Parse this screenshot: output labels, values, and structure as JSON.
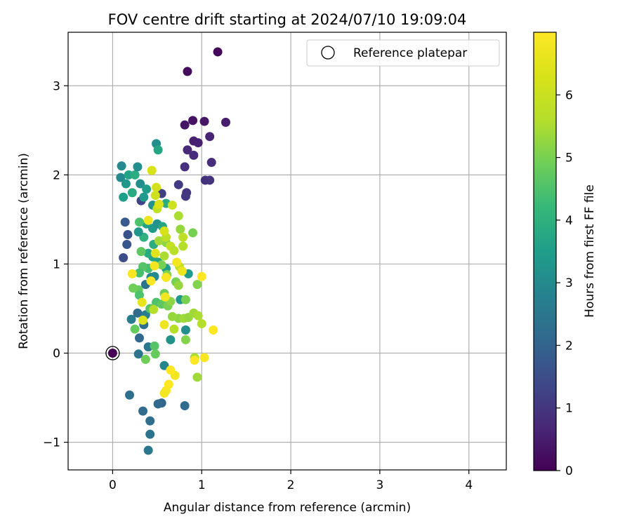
{
  "chart_data": {
    "type": "scatter",
    "title": "FOV centre drift starting at 2024/07/10 19:09:04",
    "xlabel": "Angular distance from reference (arcmin)",
    "ylabel": "Rotation from reference (arcmin)",
    "xlim": [
      -0.5,
      4.42
    ],
    "ylim": [
      -1.31,
      3.6
    ],
    "xticks": [
      0,
      1,
      2,
      3,
      4
    ],
    "yticks": [
      -1,
      0,
      1,
      2,
      3
    ],
    "grid": true,
    "legend": {
      "position": "top-right",
      "entries": [
        "Reference platepar"
      ]
    },
    "reference_point": {
      "x": 0,
      "y": 0,
      "label": "Reference platepar"
    },
    "colorbar": {
      "label": "Hours from first FF file",
      "colormap": "viridis",
      "range": [
        0,
        7
      ],
      "ticks": [
        0,
        1,
        2,
        3,
        4,
        5,
        6
      ]
    },
    "x_units": "arcmin",
    "y_units": "arcmin",
    "points": [
      {
        "x": 0.0,
        "y": 0.0,
        "c": 0.0
      },
      {
        "x": 1.18,
        "y": 3.38,
        "c": 0.1
      },
      {
        "x": 0.84,
        "y": 3.16,
        "c": 0.2
      },
      {
        "x": 0.9,
        "y": 2.61,
        "c": 0.3
      },
      {
        "x": 0.81,
        "y": 2.56,
        "c": 0.35
      },
      {
        "x": 1.03,
        "y": 2.6,
        "c": 0.4
      },
      {
        "x": 1.27,
        "y": 2.59,
        "c": 0.5
      },
      {
        "x": 0.91,
        "y": 2.38,
        "c": 0.55
      },
      {
        "x": 0.96,
        "y": 2.36,
        "c": 0.6
      },
      {
        "x": 1.09,
        "y": 2.43,
        "c": 0.65
      },
      {
        "x": 0.84,
        "y": 2.28,
        "c": 0.7
      },
      {
        "x": 0.91,
        "y": 2.22,
        "c": 0.75
      },
      {
        "x": 1.11,
        "y": 2.14,
        "c": 0.8
      },
      {
        "x": 0.81,
        "y": 2.09,
        "c": 0.85
      },
      {
        "x": 1.04,
        "y": 1.94,
        "c": 0.9
      },
      {
        "x": 1.09,
        "y": 1.94,
        "c": 0.95
      },
      {
        "x": 0.83,
        "y": 1.8,
        "c": 1.0
      },
      {
        "x": 0.82,
        "y": 1.76,
        "c": 1.05
      },
      {
        "x": 0.74,
        "y": 1.89,
        "c": 1.1
      },
      {
        "x": 0.55,
        "y": 1.79,
        "c": 1.2
      },
      {
        "x": 0.32,
        "y": 1.71,
        "c": 1.3
      },
      {
        "x": 0.12,
        "y": 1.07,
        "c": 1.5
      },
      {
        "x": 0.17,
        "y": 1.33,
        "c": 1.6
      },
      {
        "x": 0.16,
        "y": 1.22,
        "c": 1.7
      },
      {
        "x": 0.14,
        "y": 1.47,
        "c": 1.8
      },
      {
        "x": 0.55,
        "y": -0.56,
        "c": 2.0
      },
      {
        "x": 0.51,
        "y": -0.57,
        "c": 2.1
      },
      {
        "x": 0.34,
        "y": -0.65,
        "c": 2.2
      },
      {
        "x": 0.42,
        "y": -0.76,
        "c": 2.3
      },
      {
        "x": 0.42,
        "y": -0.91,
        "c": 2.4
      },
      {
        "x": 0.4,
        "y": -1.09,
        "c": 2.5
      },
      {
        "x": 0.81,
        "y": -0.59,
        "c": 2.2
      },
      {
        "x": 0.19,
        "y": -0.47,
        "c": 2.3
      },
      {
        "x": 0.29,
        "y": -0.01,
        "c": 2.4
      },
      {
        "x": 0.4,
        "y": 0.07,
        "c": 2.5
      },
      {
        "x": 0.3,
        "y": 0.17,
        "c": 2.1
      },
      {
        "x": 0.35,
        "y": 0.32,
        "c": 2.3
      },
      {
        "x": 0.28,
        "y": 0.45,
        "c": 2.2
      },
      {
        "x": 0.21,
        "y": 0.38,
        "c": 2.6
      },
      {
        "x": 0.37,
        "y": 0.43,
        "c": 2.7
      },
      {
        "x": 0.37,
        "y": 0.77,
        "c": 2.4
      },
      {
        "x": 0.43,
        "y": 0.85,
        "c": 2.9
      },
      {
        "x": 0.47,
        "y": 0.86,
        "c": 3.0
      },
      {
        "x": 0.58,
        "y": -0.14,
        "c": 2.9
      },
      {
        "x": 0.82,
        "y": 0.26,
        "c": 3.1
      },
      {
        "x": 0.65,
        "y": 0.15,
        "c": 3.2
      },
      {
        "x": 0.76,
        "y": 0.6,
        "c": 3.3
      },
      {
        "x": 0.85,
        "y": 0.89,
        "c": 3.4
      },
      {
        "x": 0.6,
        "y": 0.95,
        "c": 3.5
      },
      {
        "x": 0.51,
        "y": 1.02,
        "c": 3.6
      },
      {
        "x": 0.45,
        "y": 1.08,
        "c": 3.7
      },
      {
        "x": 0.4,
        "y": 1.12,
        "c": 3.8
      },
      {
        "x": 0.46,
        "y": 1.22,
        "c": 3.9
      },
      {
        "x": 0.35,
        "y": 1.3,
        "c": 4.0
      },
      {
        "x": 0.29,
        "y": 1.36,
        "c": 3.3
      },
      {
        "x": 0.38,
        "y": 1.45,
        "c": 3.6
      },
      {
        "x": 0.45,
        "y": 1.4,
        "c": 3.4
      },
      {
        "x": 0.5,
        "y": 1.45,
        "c": 3.2
      },
      {
        "x": 0.56,
        "y": 1.42,
        "c": 3.7
      },
      {
        "x": 0.6,
        "y": 1.68,
        "c": 3.9
      },
      {
        "x": 0.35,
        "y": 1.75,
        "c": 3.4
      },
      {
        "x": 0.31,
        "y": 1.9,
        "c": 3.1
      },
      {
        "x": 0.22,
        "y": 1.8,
        "c": 3.8
      },
      {
        "x": 0.12,
        "y": 1.75,
        "c": 3.5
      },
      {
        "x": 0.09,
        "y": 1.97,
        "c": 3.0
      },
      {
        "x": 0.1,
        "y": 2.1,
        "c": 3.0
      },
      {
        "x": 0.15,
        "y": 1.9,
        "c": 3.3
      },
      {
        "x": 0.18,
        "y": 2.0,
        "c": 3.6
      },
      {
        "x": 0.25,
        "y": 2.0,
        "c": 3.9
      },
      {
        "x": 0.28,
        "y": 2.09,
        "c": 3.1
      },
      {
        "x": 0.38,
        "y": 1.84,
        "c": 3.5
      },
      {
        "x": 0.45,
        "y": 1.66,
        "c": 3.2
      },
      {
        "x": 0.49,
        "y": 2.35,
        "c": 3.1
      },
      {
        "x": 0.51,
        "y": 2.28,
        "c": 3.7
      },
      {
        "x": 0.3,
        "y": 1.47,
        "c": 4.5
      },
      {
        "x": 0.32,
        "y": 1.14,
        "c": 4.7
      },
      {
        "x": 0.4,
        "y": 0.95,
        "c": 4.4
      },
      {
        "x": 0.34,
        "y": 0.97,
        "c": 4.6
      },
      {
        "x": 0.3,
        "y": 0.9,
        "c": 4.4
      },
      {
        "x": 0.29,
        "y": 0.71,
        "c": 4.8
      },
      {
        "x": 0.3,
        "y": 0.65,
        "c": 4.5
      },
      {
        "x": 0.23,
        "y": 0.73,
        "c": 4.9
      },
      {
        "x": 0.25,
        "y": 0.27,
        "c": 4.8
      },
      {
        "x": 0.37,
        "y": -0.07,
        "c": 4.9
      },
      {
        "x": 0.47,
        "y": 0.08,
        "c": 4.6
      },
      {
        "x": 0.48,
        "y": -0.01,
        "c": 4.8
      },
      {
        "x": 0.49,
        "y": 0.57,
        "c": 4.5
      },
      {
        "x": 0.45,
        "y": 0.5,
        "c": 4.8
      },
      {
        "x": 0.42,
        "y": 0.5,
        "c": 4.6
      },
      {
        "x": 0.55,
        "y": 0.55,
        "c": 4.7
      },
      {
        "x": 0.58,
        "y": 0.67,
        "c": 4.9
      },
      {
        "x": 0.62,
        "y": 0.53,
        "c": 5.0
      },
      {
        "x": 0.65,
        "y": 0.58,
        "c": 5.2
      },
      {
        "x": 0.71,
        "y": 0.8,
        "c": 5.0
      },
      {
        "x": 0.74,
        "y": 0.76,
        "c": 5.3
      },
      {
        "x": 0.74,
        "y": 0.39,
        "c": 5.2
      },
      {
        "x": 0.8,
        "y": 0.39,
        "c": 5.4
      },
      {
        "x": 0.85,
        "y": 0.4,
        "c": 5.3
      },
      {
        "x": 0.82,
        "y": 0.6,
        "c": 5.0
      },
      {
        "x": 0.82,
        "y": 0.15,
        "c": 5.1
      },
      {
        "x": 0.91,
        "y": 0.45,
        "c": 5.4
      },
      {
        "x": 0.96,
        "y": 0.42,
        "c": 5.5
      },
      {
        "x": 1.0,
        "y": 0.33,
        "c": 5.6
      },
      {
        "x": 0.95,
        "y": 0.77,
        "c": 5.1
      },
      {
        "x": 0.92,
        "y": -0.05,
        "c": 5.5
      },
      {
        "x": 0.95,
        "y": -0.27,
        "c": 5.4
      },
      {
        "x": 0.67,
        "y": 0.41,
        "c": 5.3
      },
      {
        "x": 0.69,
        "y": 0.27,
        "c": 5.6
      },
      {
        "x": 0.9,
        "y": 1.35,
        "c": 5.0
      },
      {
        "x": 0.76,
        "y": 1.39,
        "c": 5.3
      },
      {
        "x": 0.79,
        "y": 1.2,
        "c": 5.6
      },
      {
        "x": 0.74,
        "y": 1.54,
        "c": 5.5
      },
      {
        "x": 0.6,
        "y": 1.24,
        "c": 5.2
      },
      {
        "x": 0.58,
        "y": 1.09,
        "c": 5.5
      },
      {
        "x": 0.52,
        "y": 1.26,
        "c": 5.4
      },
      {
        "x": 0.55,
        "y": 0.99,
        "c": 5.0
      },
      {
        "x": 0.61,
        "y": 0.88,
        "c": 5.1
      },
      {
        "x": 0.46,
        "y": 0.49,
        "c": 5.6
      },
      {
        "x": 0.6,
        "y": 1.3,
        "c": 5.8
      },
      {
        "x": 0.65,
        "y": 1.2,
        "c": 5.9
      },
      {
        "x": 0.69,
        "y": 1.15,
        "c": 5.7
      },
      {
        "x": 0.75,
        "y": 0.97,
        "c": 5.9
      },
      {
        "x": 0.79,
        "y": 1.3,
        "c": 5.8
      },
      {
        "x": 0.5,
        "y": 1.62,
        "c": 5.9
      },
      {
        "x": 0.48,
        "y": 1.77,
        "c": 6.1
      },
      {
        "x": 0.49,
        "y": 1.86,
        "c": 6.2
      },
      {
        "x": 0.44,
        "y": 2.05,
        "c": 6.3
      },
      {
        "x": 0.52,
        "y": 1.67,
        "c": 6.4
      },
      {
        "x": 0.67,
        "y": 1.66,
        "c": 6.1
      },
      {
        "x": 0.58,
        "y": 1.37,
        "c": 6.3
      },
      {
        "x": 0.48,
        "y": 1.12,
        "c": 6.5
      },
      {
        "x": 0.47,
        "y": 0.98,
        "c": 6.8
      },
      {
        "x": 0.33,
        "y": 0.57,
        "c": 6.6
      },
      {
        "x": 0.34,
        "y": 0.37,
        "c": 6.4
      },
      {
        "x": 0.22,
        "y": 0.89,
        "c": 6.9
      },
      {
        "x": 0.4,
        "y": 1.49,
        "c": 6.7
      },
      {
        "x": 0.43,
        "y": 0.81,
        "c": 7.0
      },
      {
        "x": 0.59,
        "y": 0.63,
        "c": 6.8
      },
      {
        "x": 0.58,
        "y": 0.32,
        "c": 6.7
      },
      {
        "x": 0.72,
        "y": 1.02,
        "c": 6.8
      },
      {
        "x": 0.6,
        "y": 0.85,
        "c": 6.9
      },
      {
        "x": 0.78,
        "y": 0.92,
        "c": 6.7
      },
      {
        "x": 1.0,
        "y": 0.86,
        "c": 7.0
      },
      {
        "x": 1.13,
        "y": 0.26,
        "c": 7.0
      },
      {
        "x": 0.92,
        "y": -0.08,
        "c": 7.0
      },
      {
        "x": 1.03,
        "y": -0.05,
        "c": 6.9
      },
      {
        "x": 0.7,
        "y": -0.25,
        "c": 6.8
      },
      {
        "x": 0.65,
        "y": -0.19,
        "c": 7.0
      },
      {
        "x": 0.63,
        "y": -0.35,
        "c": 7.0
      },
      {
        "x": 0.6,
        "y": -0.42,
        "c": 6.9
      },
      {
        "x": 0.58,
        "y": -0.45,
        "c": 6.8
      }
    ]
  }
}
